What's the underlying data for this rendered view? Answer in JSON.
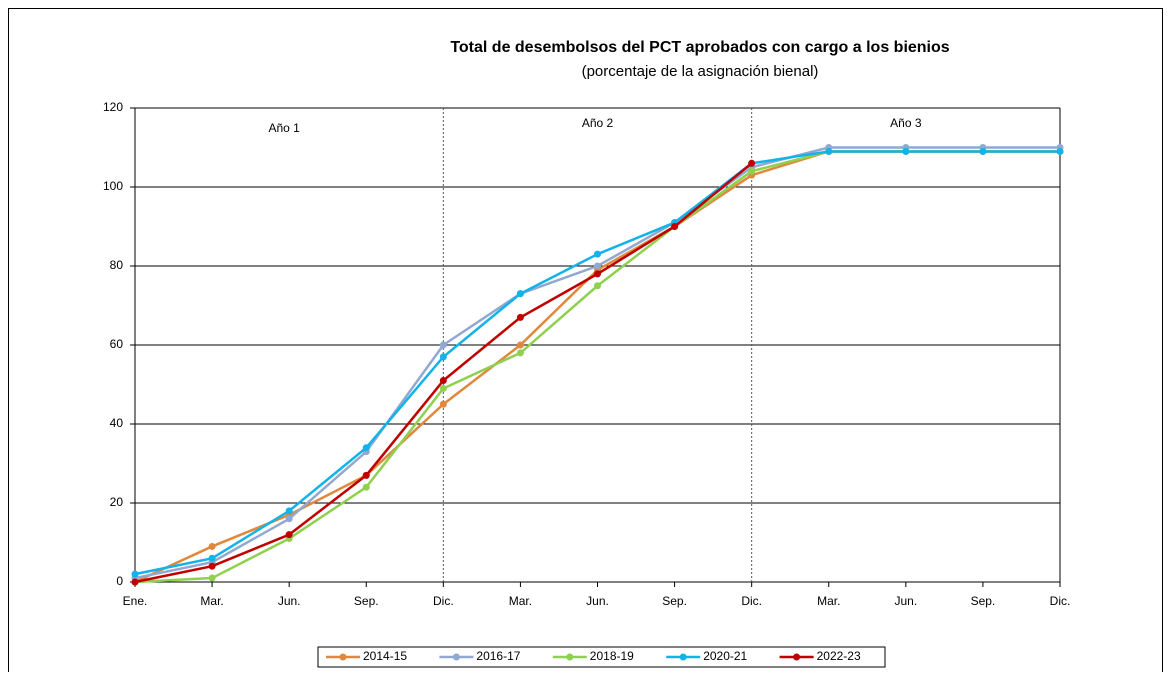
{
  "chart_data": {
    "type": "line",
    "title": "Total de desembolsos del PCT aprobados con cargo a los bienios",
    "subtitle": "(porcentaje de la asignación bienal)",
    "annotations": [
      "Año 1",
      "Año 2",
      "Año 3"
    ],
    "categories": [
      "Ene.",
      "Mar.",
      "Jun.",
      "Sep.",
      "Dic.",
      "Mar.",
      "Jun.",
      "Sep.",
      "Dic.",
      "Mar.",
      "Jun.",
      "Sep.",
      "Dic."
    ],
    "series": [
      {
        "name": "2014-15",
        "color": "#e0883c",
        "values": [
          0,
          9,
          17,
          27,
          45,
          60,
          79,
          90,
          103,
          109,
          109,
          109,
          109
        ]
      },
      {
        "name": "2016-17",
        "color": "#91a8d0",
        "values": [
          1,
          5,
          16,
          33,
          60,
          73,
          80,
          91,
          105,
          110,
          110,
          110,
          110
        ]
      },
      {
        "name": "2018-19",
        "color": "#8fd14f",
        "values": [
          0,
          1,
          11,
          24,
          49,
          58,
          75,
          90,
          104,
          109,
          109,
          109,
          109
        ]
      },
      {
        "name": "2020-21",
        "color": "#12b2ea",
        "values": [
          2,
          6,
          18,
          34,
          57,
          73,
          83,
          91,
          106,
          109,
          109,
          109,
          109
        ]
      },
      {
        "name": "2022-23",
        "color": "#c00000",
        "values": [
          0,
          4,
          12,
          27,
          51,
          67,
          78,
          90,
          106,
          null,
          null,
          null,
          null
        ]
      }
    ],
    "ylim": [
      0,
      120
    ],
    "yticks": [
      0,
      20,
      40,
      60,
      80,
      100,
      120
    ],
    "grid": true,
    "legend": "bottom"
  }
}
